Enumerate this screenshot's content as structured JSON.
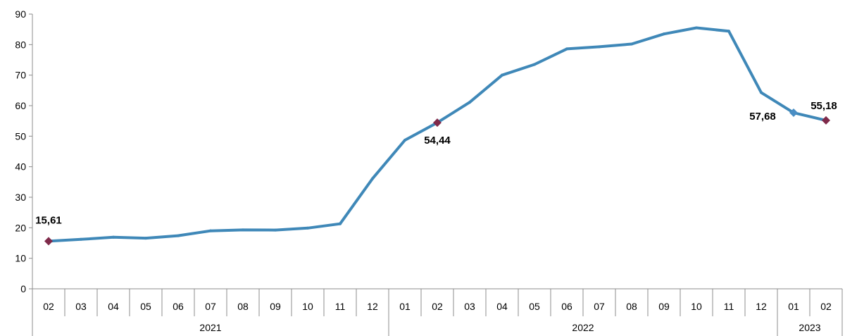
{
  "chart_data": {
    "type": "line",
    "title": "",
    "xlabel": "",
    "ylabel": "",
    "ylim": [
      0,
      90
    ],
    "yticks": [
      "0",
      "10",
      "20",
      "30",
      "40",
      "50",
      "60",
      "70",
      "80",
      "90"
    ],
    "grid": false,
    "legend": "none",
    "categories": [
      "02",
      "03",
      "04",
      "05",
      "06",
      "07",
      "08",
      "09",
      "10",
      "11",
      "12",
      "01",
      "02",
      "03",
      "04",
      "05",
      "06",
      "07",
      "08",
      "09",
      "10",
      "11",
      "12",
      "01",
      "02"
    ],
    "years": [
      {
        "label": "2021",
        "start": 0,
        "count": 11
      },
      {
        "label": "2022",
        "start": 11,
        "count": 12
      },
      {
        "label": "2023",
        "start": 23,
        "count": 2
      }
    ],
    "series": [
      {
        "values": [
          15.61,
          16.2,
          16.9,
          16.6,
          17.4,
          19.0,
          19.3,
          19.25,
          19.9,
          21.3,
          36.1,
          48.7,
          54.44,
          61.1,
          70.0,
          73.5,
          78.6,
          79.3,
          80.2,
          83.5,
          85.5,
          84.4,
          64.3,
          57.68,
          55.18
        ],
        "color": "#3f88b8"
      }
    ],
    "annotations": [
      {
        "index": 0,
        "label": "15,61",
        "marker": "diamond",
        "marker_color": "#7f2a4a"
      },
      {
        "index": 12,
        "label": "54,44",
        "marker": "diamond",
        "marker_color": "#7f2a4a"
      },
      {
        "index": 23,
        "label": "57,68",
        "marker": "diamond",
        "marker_color": "#4a8ec4"
      },
      {
        "index": 24,
        "label": "55,18",
        "marker": "diamond",
        "marker_color": "#7f2a4a"
      }
    ]
  }
}
